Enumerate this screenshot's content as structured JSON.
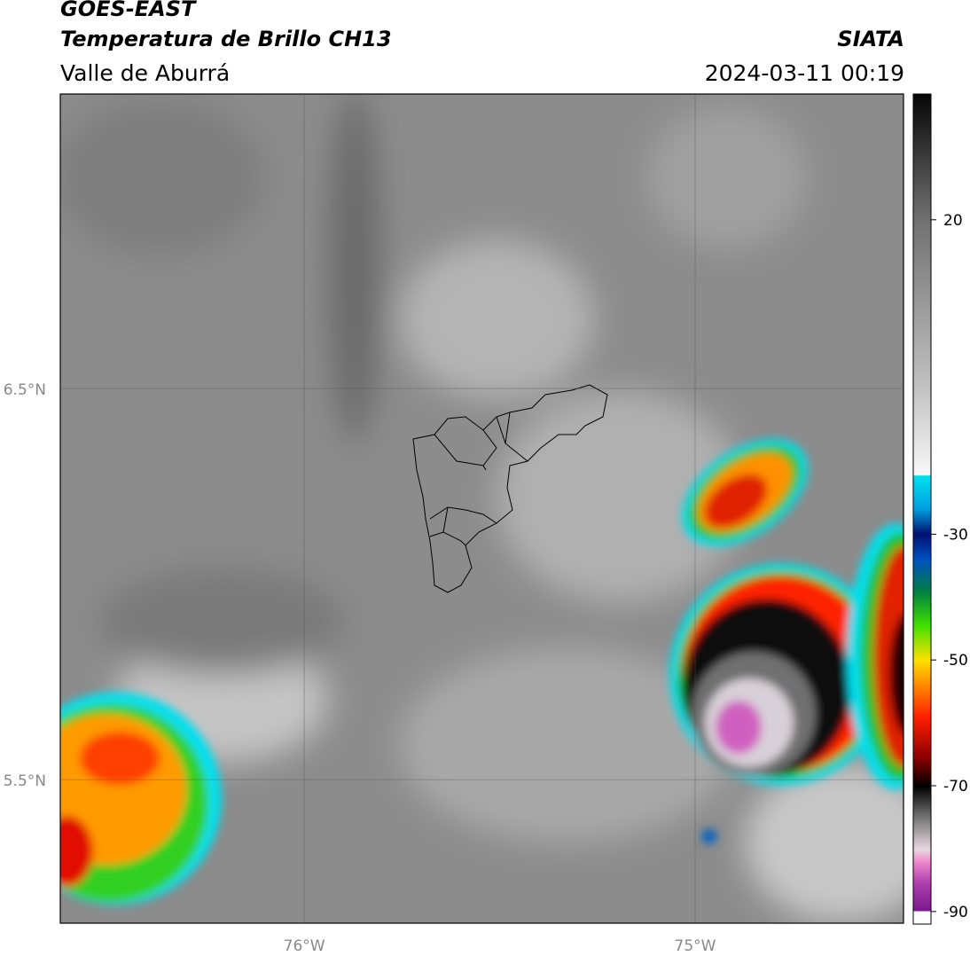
{
  "header": {
    "satellite": "GOES-EAST",
    "product": "Temperatura de Brillo CH13",
    "region": "Valle de Aburrá",
    "source": "SIATA",
    "datetime": "2024-03-11 00:19"
  },
  "map": {
    "lat_lim": [
      5.133,
      7.253
    ],
    "lon_lim": [
      -76.624,
      -74.467
    ],
    "lat_ticks": [
      {
        "value": 6.5,
        "label": "6.5°N"
      },
      {
        "value": 5.5,
        "label": "5.5°N"
      }
    ],
    "lon_ticks": [
      {
        "value": -76,
        "label": "76°W"
      },
      {
        "value": -75,
        "label": "75°W"
      }
    ],
    "grid": true
  },
  "colorbar": {
    "lim": [
      -92,
      40
    ],
    "ticks": [
      20,
      -30,
      -50,
      -70,
      -90
    ]
  }
}
